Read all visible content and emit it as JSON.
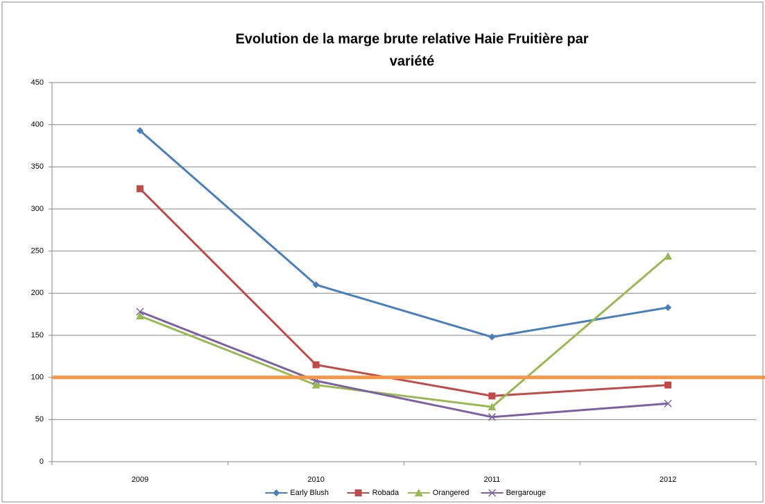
{
  "chart_data": {
    "type": "line",
    "title": [
      "Evolution de la marge brute relative Haie Fruitière par",
      "variété"
    ],
    "categories": [
      "2009",
      "2010",
      "2011",
      "2012"
    ],
    "series": [
      {
        "name": "Early Blush",
        "color": "#4a7ebb",
        "marker": "diamond",
        "values": [
          393,
          210,
          148,
          183
        ]
      },
      {
        "name": "Robada",
        "color": "#be4b48",
        "marker": "square",
        "values": [
          324,
          115,
          78,
          91
        ]
      },
      {
        "name": "Orangered",
        "color": "#98b954",
        "marker": "triangle",
        "values": [
          173,
          91,
          65,
          244
        ]
      },
      {
        "name": "Bergarouge",
        "color": "#7d60a0",
        "marker": "x",
        "values": [
          178,
          96,
          53,
          69
        ]
      }
    ],
    "reference_line": {
      "value": 100,
      "color": "#f79646"
    },
    "ylim": [
      0,
      450
    ],
    "yticks": [
      0,
      50,
      100,
      150,
      200,
      250,
      300,
      350,
      400,
      450
    ],
    "grid": true,
    "legend": "bottom"
  }
}
